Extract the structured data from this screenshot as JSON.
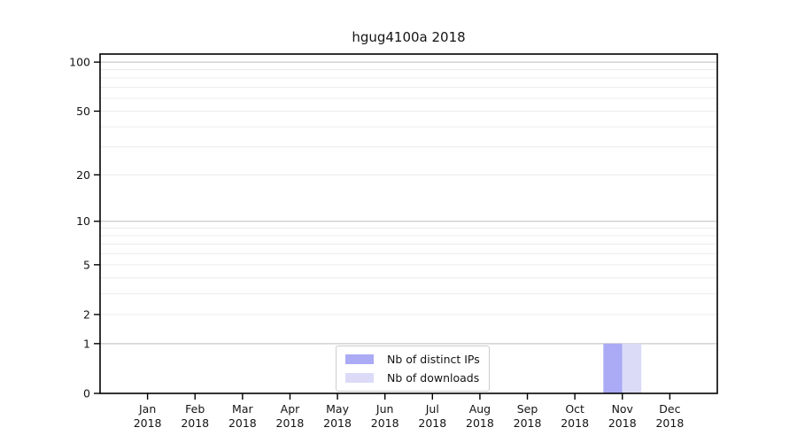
{
  "chart_data": {
    "type": "bar",
    "title": "hgug4100a 2018",
    "categories": [
      "Jan 2018",
      "Feb 2018",
      "Mar 2018",
      "Apr 2018",
      "May 2018",
      "Jun 2018",
      "Jul 2018",
      "Aug 2018",
      "Sep 2018",
      "Oct 2018",
      "Nov 2018",
      "Dec 2018"
    ],
    "series": [
      {
        "name": "Nb of distinct IPs",
        "color": "#aaaaf5",
        "values": [
          0,
          0,
          0,
          0,
          0,
          0,
          0,
          0,
          0,
          0,
          1,
          0
        ]
      },
      {
        "name": "Nb of downloads",
        "color": "#dbdbf8",
        "values": [
          0,
          0,
          0,
          0,
          0,
          0,
          0,
          0,
          0,
          0,
          1,
          0
        ]
      }
    ],
    "xlabel": "",
    "ylabel": "",
    "yscale": "log1p",
    "ylim": [
      0,
      112
    ],
    "yticks": [
      0,
      1,
      2,
      5,
      10,
      20,
      50,
      100
    ],
    "major_gridlines": [
      1,
      10,
      100
    ],
    "minor_gridlines": [
      2,
      3,
      4,
      5,
      6,
      7,
      8,
      9,
      20,
      30,
      40,
      50,
      60,
      70,
      80,
      90
    ],
    "grid": true,
    "legend_position": "lower center",
    "colors": {
      "axis": "#000000",
      "text": "#141414",
      "major_grid": "#c9c9c9",
      "minor_grid": "#ececec",
      "background": "#ffffff"
    }
  }
}
